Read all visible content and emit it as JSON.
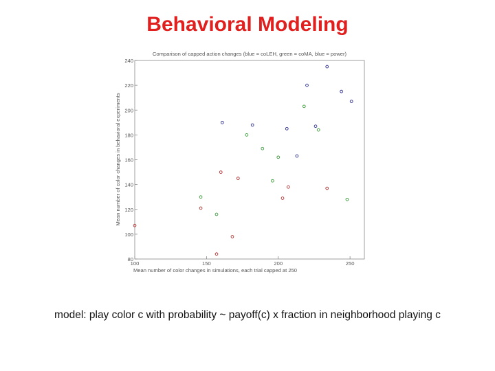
{
  "slide": {
    "title": "Behavioral Modeling",
    "caption": "model: play color c with probability ~ payoff(c) x fraction in neighborhood playing c"
  },
  "chart_data": {
    "type": "scatter",
    "title": "Comparison of capped action changes (blue = coLEH, green = coMA, blue = power)",
    "xlabel": "Mean number of color changes in simulations, each trial capped at 250",
    "ylabel": "Mean number of color changes in behavioral experiments",
    "xlim": [
      100,
      260
    ],
    "ylim": [
      80,
      240
    ],
    "x_ticks": [
      "100",
      "150",
      "200",
      "250"
    ],
    "y_ticks": [
      "80",
      "100",
      "120",
      "140",
      "160",
      "180",
      "200",
      "220",
      "240"
    ],
    "grid": false,
    "legend": "none",
    "series": [
      {
        "color": "#b03030",
        "points": [
          {
            "x": 100,
            "y": 107
          },
          {
            "x": 146,
            "y": 121
          },
          {
            "x": 157,
            "y": 84
          },
          {
            "x": 160,
            "y": 150
          },
          {
            "x": 168,
            "y": 98
          },
          {
            "x": 172,
            "y": 145
          },
          {
            "x": 203,
            "y": 129
          },
          {
            "x": 207,
            "y": 138
          },
          {
            "x": 234,
            "y": 137
          }
        ]
      },
      {
        "color": "#3a9a3a",
        "points": [
          {
            "x": 146,
            "y": 130
          },
          {
            "x": 157,
            "y": 116
          },
          {
            "x": 178,
            "y": 180
          },
          {
            "x": 189,
            "y": 169
          },
          {
            "x": 196,
            "y": 143
          },
          {
            "x": 200,
            "y": 162
          },
          {
            "x": 218,
            "y": 203
          },
          {
            "x": 228,
            "y": 184
          },
          {
            "x": 248,
            "y": 128
          }
        ]
      },
      {
        "color": "#303090",
        "points": [
          {
            "x": 161,
            "y": 190
          },
          {
            "x": 182,
            "y": 188
          },
          {
            "x": 206,
            "y": 185
          },
          {
            "x": 213,
            "y": 163
          },
          {
            "x": 220,
            "y": 220
          },
          {
            "x": 226,
            "y": 187
          },
          {
            "x": 234,
            "y": 235
          },
          {
            "x": 244,
            "y": 215
          },
          {
            "x": 251,
            "y": 207
          }
        ]
      }
    ]
  }
}
